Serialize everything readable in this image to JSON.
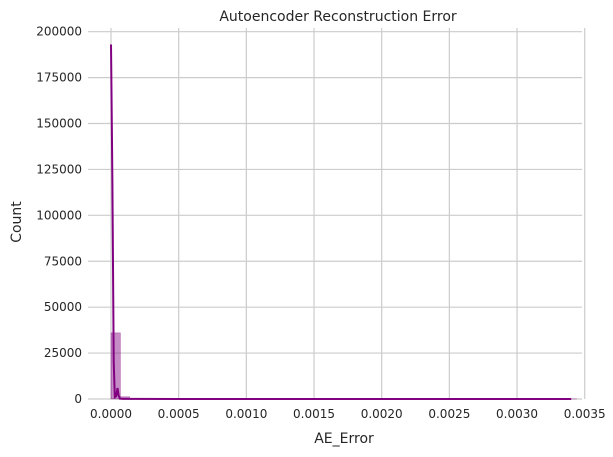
{
  "chart_data": {
    "type": "bar",
    "title": "Autoencoder Reconstruction Error",
    "xlabel": "AE_Error",
    "ylabel": "Count",
    "xlim": [
      -0.00017,
      0.00348
    ],
    "ylim": [
      0,
      202000
    ],
    "grid": true,
    "colors": {
      "hist": "#800080",
      "kde": "#800080",
      "grid": "#cccccc",
      "background": "#ffffff"
    },
    "x_ticks": [
      0.0,
      0.0005,
      0.001,
      0.0015,
      0.002,
      0.0025,
      0.003,
      0.0035
    ],
    "x_tick_labels": [
      "0.0000",
      "0.0005",
      "0.0010",
      "0.0015",
      "0.0020",
      "0.0025",
      "0.0030",
      "0.0035"
    ],
    "y_ticks": [
      0,
      25000,
      50000,
      75000,
      100000,
      125000,
      150000,
      175000,
      200000
    ],
    "y_tick_labels": [
      "0",
      "25000",
      "50000",
      "75000",
      "100000",
      "125000",
      "150000",
      "175000",
      "200000"
    ],
    "series": [
      {
        "kind": "histogram",
        "bin_width": 6.88e-05,
        "bins": [
          {
            "x0": 0.0,
            "count": 36000
          },
          {
            "x0": 6.88e-05,
            "count": 1200
          },
          {
            "x0": 0.0001376,
            "count": 300
          },
          {
            "x0": 0.0002064,
            "count": 120
          },
          {
            "x0": 0.001376,
            "count": 60
          },
          {
            "x0": 0.0033712,
            "count": 30
          }
        ]
      },
      {
        "kind": "kde",
        "points": [
          [
            0.0,
            193000
          ],
          [
            1e-05,
            120000
          ],
          [
            2e-05,
            20000
          ],
          [
            2.8e-05,
            1000
          ],
          [
            3.8e-05,
            1500
          ],
          [
            4.8e-05,
            6000
          ],
          [
            5.6e-05,
            2000
          ],
          [
            6.6e-05,
            200
          ],
          [
            9e-05,
            50
          ],
          [
            0.0005,
            0
          ],
          [
            0.0034,
            0
          ]
        ]
      }
    ]
  }
}
